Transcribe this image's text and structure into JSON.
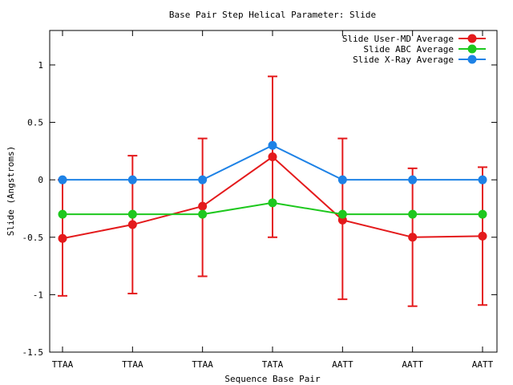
{
  "chart_data": {
    "type": "line",
    "title": "Base Pair Step Helical Parameter: Slide",
    "xlabel": "Sequence Base Pair",
    "ylabel": "Slide (Angstroms)",
    "categories": [
      "TTAA",
      "TTAA",
      "TTAA",
      "TATA",
      "AATT",
      "AATT",
      "AATT"
    ],
    "ylim": [
      -1.5,
      1.3
    ],
    "yticks": [
      -1.5,
      -1,
      -0.5,
      0,
      0.5,
      1
    ],
    "ytick_labels": [
      "-1.5",
      "-1",
      "-0.5",
      "0",
      "0.5",
      "1"
    ],
    "grid": false,
    "legend_position": "top-right",
    "series": [
      {
        "name": "Slide User-MD Average",
        "color": "#e41a1c",
        "values": [
          -0.51,
          -0.39,
          -0.23,
          0.2,
          -0.35,
          -0.5,
          -0.49
        ],
        "error_low": [
          -1.01,
          -0.99,
          -0.84,
          -0.5,
          -1.04,
          -1.1,
          -1.09
        ],
        "error_high": [
          0.0,
          0.21,
          0.36,
          0.9,
          0.36,
          0.1,
          0.11
        ]
      },
      {
        "name": "Slide ABC Average",
        "color": "#1ec81e",
        "values": [
          -0.3,
          -0.3,
          -0.3,
          -0.2,
          -0.3,
          -0.3,
          -0.3
        ]
      },
      {
        "name": "Slide X-Ray Average",
        "color": "#1e82e6",
        "values": [
          0.0,
          0.0,
          0.0,
          0.3,
          0.0,
          0.0,
          0.0
        ]
      }
    ]
  }
}
